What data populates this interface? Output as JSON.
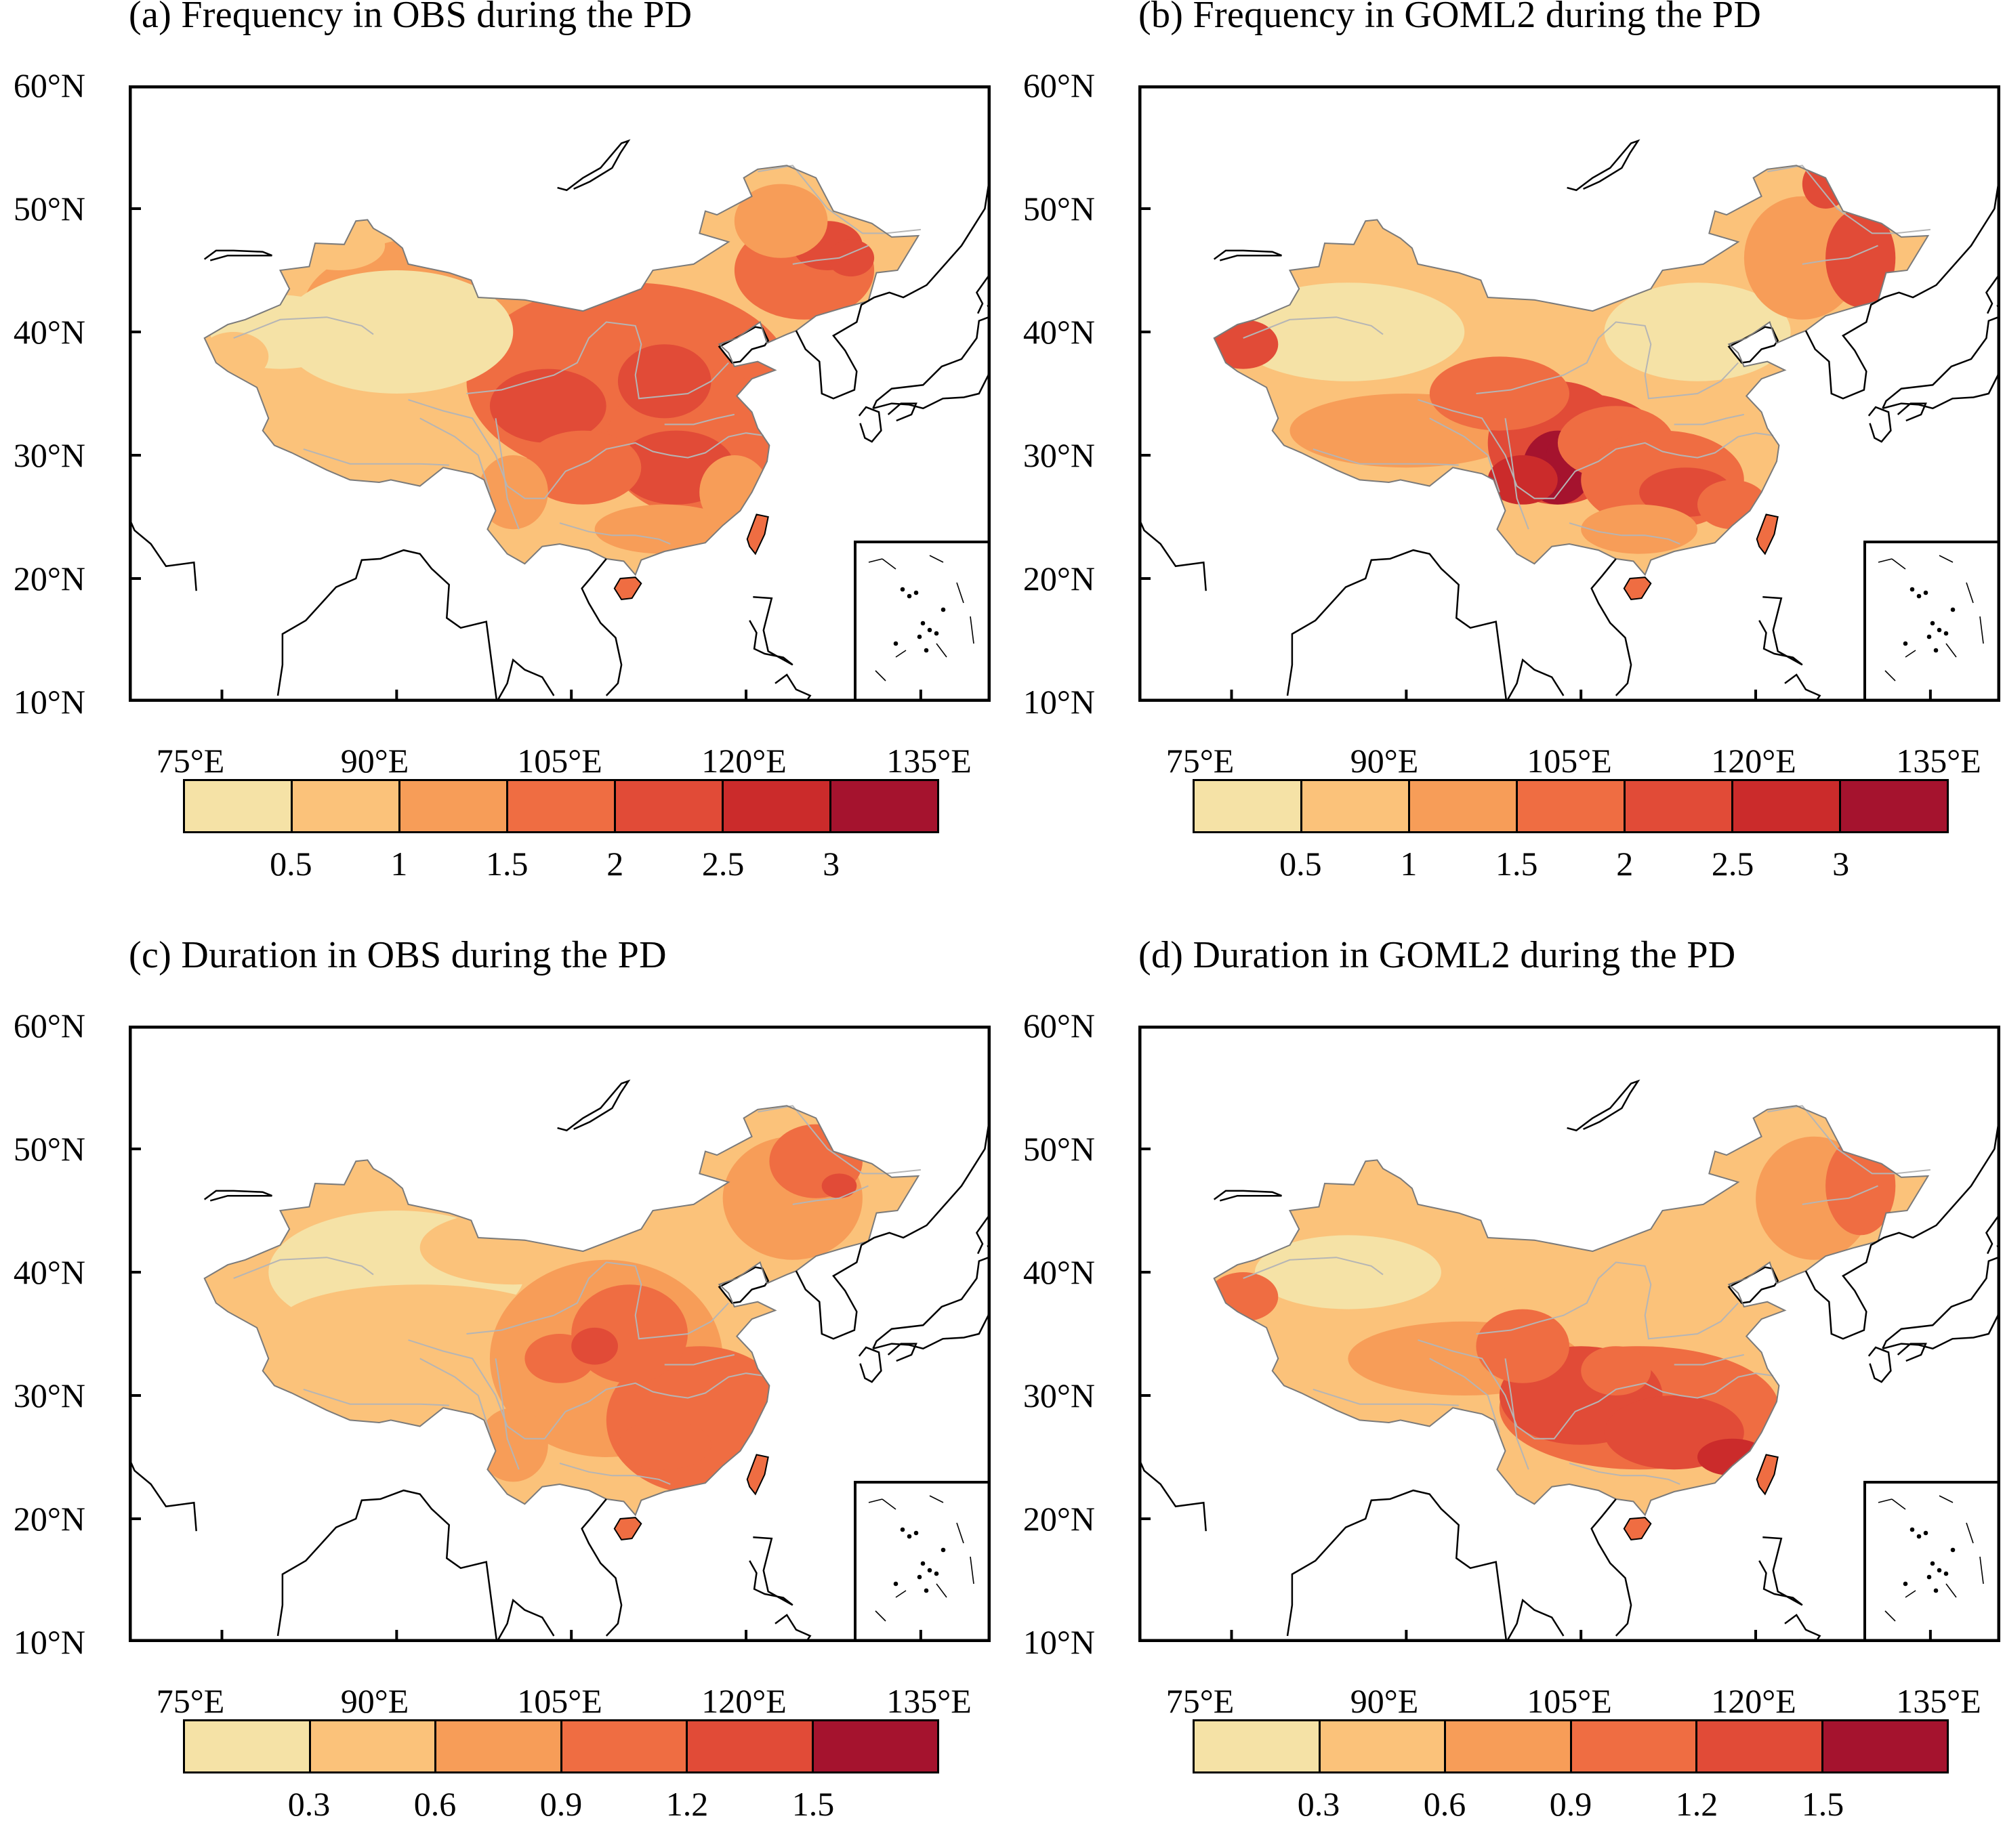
{
  "colors": {
    "levels": [
      "#f5e2a6",
      "#fbc27a",
      "#f79d58",
      "#ef6d42",
      "#e14b37",
      "#cb2b2b",
      "#a5132e"
    ],
    "coast": "#000000",
    "rivers": "#b5b5b5"
  },
  "y_ticks": [
    "60°N",
    "50°N",
    "40°N",
    "30°N",
    "20°N",
    "10°N"
  ],
  "x_ticks": [
    "75°E",
    "90°E",
    "105°E",
    "120°E",
    "135°E"
  ],
  "panels": [
    {
      "title": "(a) Frequency in OBS during the PD",
      "colorbar": {
        "labels": [
          "0.5",
          "1",
          "1.5",
          "2",
          "2.5",
          "3"
        ],
        "n_levels": 7
      },
      "pattern": "freq_obs"
    },
    {
      "title": "(b) Frequency in GOML2 during the PD",
      "colorbar": {
        "labels": [
          "0.5",
          "1",
          "1.5",
          "2",
          "2.5",
          "3"
        ],
        "n_levels": 7
      },
      "pattern": "freq_goml2"
    },
    {
      "title": "(c) Duration in OBS during the PD",
      "colorbar": {
        "labels": [
          "0.3",
          "0.6",
          "0.9",
          "1.2",
          "1.5"
        ],
        "n_levels": 6
      },
      "pattern": "dur_obs"
    },
    {
      "title": "(d) Duration in GOML2 during the PD",
      "colorbar": {
        "labels": [
          "0.3",
          "0.6",
          "0.9",
          "1.2",
          "1.5"
        ],
        "n_levels": 6
      },
      "pattern": "dur_goml2"
    }
  ]
}
